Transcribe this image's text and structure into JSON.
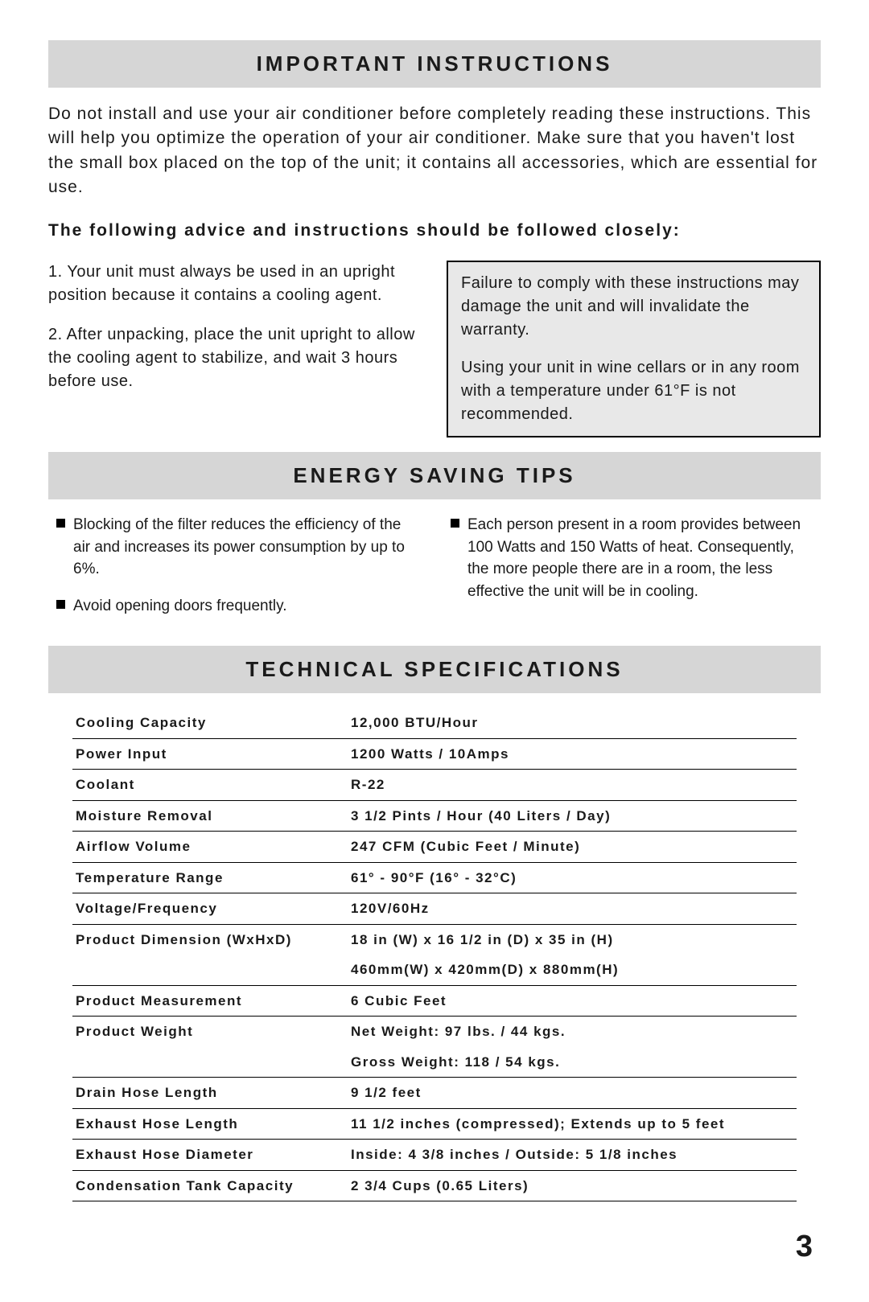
{
  "headers": {
    "important": "IMPORTANT INSTRUCTIONS",
    "energy": "ENERGY SAVING TIPS",
    "specs": "TECHNICAL SPECIFICATIONS"
  },
  "intro": "Do not install and use your air conditioner before completely reading these instructions. This will help you optimize the operation of your air conditioner.  Make sure that you haven't lost the small box placed on the top of the unit; it contains all accessories, which are essential for use.",
  "advice_bold": "The following advice and instructions should be followed closely:",
  "instructions": {
    "item1": "1. Your unit must always be used in an upright position because it contains a cooling agent.",
    "item2": "2.  After unpacking, place the unit upright to allow the cooling agent to stabilize, and wait 3 hours before use."
  },
  "warnings": {
    "w1": "Failure to comply with these instructions may damage the unit and will invalidate the warranty.",
    "w2": "Using your unit in wine cellars or in any room with a temperature under 61°F is not recommended."
  },
  "tips": {
    "left1": "Blocking of the filter reduces the efficiency of the air and increases its power consumption by up to 6%.",
    "left2": "Avoid opening doors frequently.",
    "right1": "Each person present  in a room provides between 100 Watts and 150 Watts of heat. Consequently, the more people there are in a room, the less effective the unit will be in cooling."
  },
  "specs": {
    "cooling_capacity": {
      "label": "Cooling Capacity",
      "value": "12,000 BTU/Hour"
    },
    "power_input": {
      "label": "Power Input",
      "value": "1200 Watts / 10Amps"
    },
    "coolant": {
      "label": "Coolant",
      "value": "R-22"
    },
    "moisture": {
      "label": "Moisture Removal",
      "value": "3 1/2 Pints / Hour (40 Liters / Day)"
    },
    "airflow": {
      "label": "Airflow Volume",
      "value": "247 CFM (Cubic Feet / Minute)"
    },
    "temp": {
      "label": "Temperature Range",
      "value": "61° - 90°F (16° - 32°C)"
    },
    "voltage": {
      "label": "Voltage/Frequency",
      "value": "120V/60Hz"
    },
    "dim1": {
      "label": "Product Dimension (WxHxD)",
      "value": "18 in (W) x 16 1/2 in (D) x 35 in (H)"
    },
    "dim2": {
      "label": "",
      "value": "460mm(W) x  420mm(D) x 880mm(H)"
    },
    "measurement": {
      "label": "Product Measurement",
      "value": "6 Cubic Feet"
    },
    "weight1": {
      "label": "Product Weight",
      "value": "Net Weight: 97 lbs. / 44 kgs."
    },
    "weight2": {
      "label": "",
      "value": "Gross Weight: 118 / 54 kgs."
    },
    "drain": {
      "label": "Drain Hose Length",
      "value": "9 1/2 feet"
    },
    "exhaust_len": {
      "label": "Exhaust Hose Length",
      "value": "11 1/2 inches (compressed); Extends up to 5 feet"
    },
    "exhaust_dia": {
      "label": "Exhaust Hose Diameter",
      "value": "Inside: 4 3/8 inches / Outside: 5 1/8 inches"
    },
    "tank": {
      "label": "Condensation Tank Capacity",
      "value": "2 3/4 Cups (0.65 Liters)"
    }
  },
  "page_number": "3",
  "colors": {
    "header_bg": "#d6d6d6",
    "warn_bg": "#e8e8e8",
    "text": "#1a1a1a",
    "rule": "#000000"
  }
}
